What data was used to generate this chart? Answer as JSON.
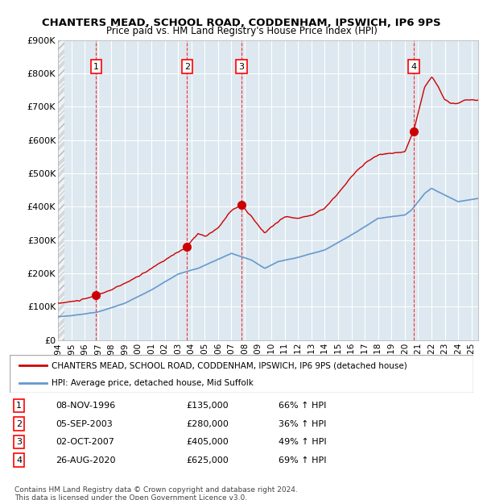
{
  "title1": "CHANTERS MEAD, SCHOOL ROAD, CODDENHAM, IPSWICH, IP6 9PS",
  "title2": "Price paid vs. HM Land Registry's House Price Index (HPI)",
  "legend1": "CHANTERS MEAD, SCHOOL ROAD, CODDENHAM, IPSWICH, IP6 9PS (detached house)",
  "legend2": "HPI: Average price, detached house, Mid Suffolk",
  "sales": [
    {
      "num": 1,
      "date": "08-NOV-1996",
      "year": 1996.86,
      "price": 135000,
      "hpi_pct": "66% ↑ HPI"
    },
    {
      "num": 2,
      "date": "05-SEP-2003",
      "year": 2003.68,
      "price": 280000,
      "hpi_pct": "36% ↑ HPI"
    },
    {
      "num": 3,
      "date": "02-OCT-2007",
      "year": 2007.75,
      "price": 405000,
      "hpi_pct": "49% ↑ HPI"
    },
    {
      "num": 4,
      "date": "26-AUG-2020",
      "year": 2020.65,
      "price": 625000,
      "hpi_pct": "69% ↑ HPI"
    }
  ],
  "xmin": 1994.0,
  "xmax": 2025.5,
  "ymin": 0,
  "ymax": 900000,
  "red_line_color": "#cc0000",
  "blue_line_color": "#6699cc",
  "grid_color": "#aaaacc",
  "bg_color": "#dde8f0",
  "plot_bg": "#dde8f0",
  "hatch_color": "#aaaacc",
  "footnote1": "Contains HM Land Registry data © Crown copyright and database right 2024.",
  "footnote2": "This data is licensed under the Open Government Licence v3.0."
}
